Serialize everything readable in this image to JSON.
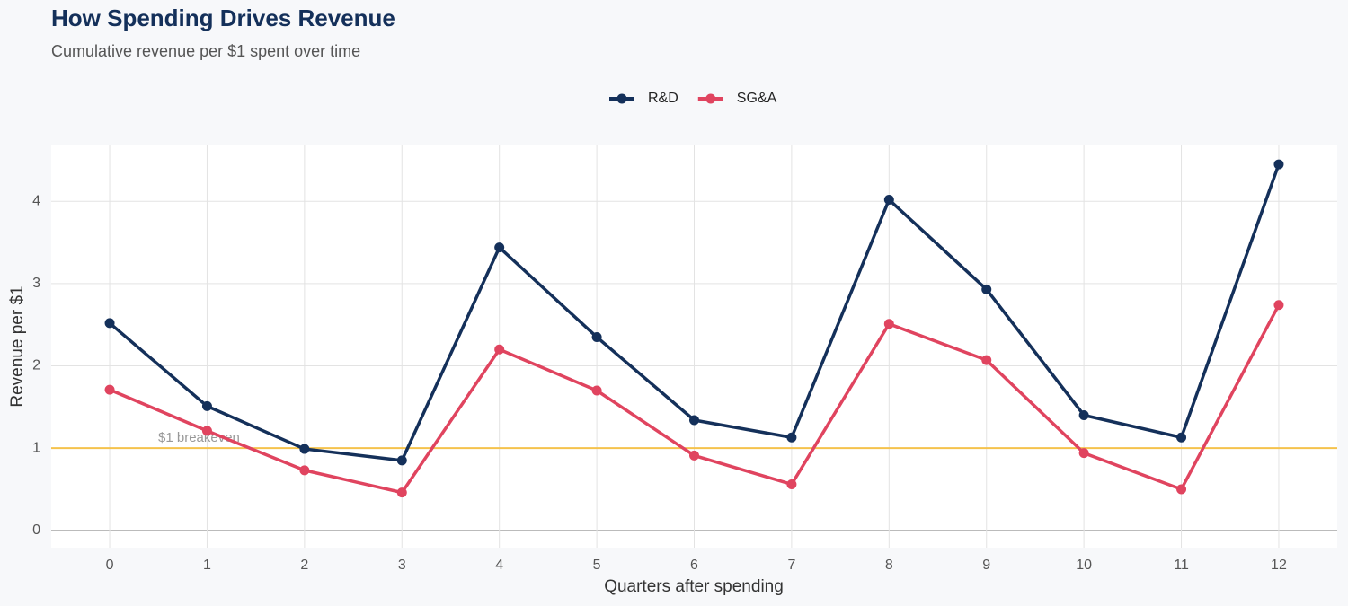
{
  "chart_data": {
    "type": "line",
    "title": "How Spending Drives Revenue",
    "subtitle": "Cumulative revenue per $1 spent over time",
    "x_label": "Quarters after spending",
    "y_label": "Revenue per $1",
    "x": [
      0,
      1,
      2,
      3,
      4,
      5,
      6,
      7,
      8,
      9,
      10,
      11,
      12
    ],
    "series": [
      {
        "name": "R&D",
        "color": "#14305a",
        "values": [
          2.52,
          1.51,
          0.99,
          0.85,
          3.44,
          2.35,
          1.34,
          1.13,
          4.02,
          2.93,
          1.4,
          1.13,
          4.45
        ]
      },
      {
        "name": "SG&A",
        "color": "#e0445f",
        "values": [
          1.71,
          1.21,
          0.73,
          0.46,
          2.2,
          1.7,
          0.91,
          0.56,
          2.51,
          2.07,
          0.94,
          0.5,
          2.74
        ]
      }
    ],
    "reference_line": {
      "value": 1,
      "label": "$1 breakeven",
      "color": "#f5c24c"
    },
    "xlim": [
      -0.6,
      12.6
    ],
    "xticks": [
      0,
      1,
      2,
      3,
      4,
      5,
      6,
      7,
      8,
      9,
      10,
      11,
      12
    ],
    "ylim": [
      -0.21,
      4.68
    ],
    "yticks": [
      0,
      1,
      2,
      3,
      4
    ],
    "grid": true,
    "legend": "top"
  }
}
